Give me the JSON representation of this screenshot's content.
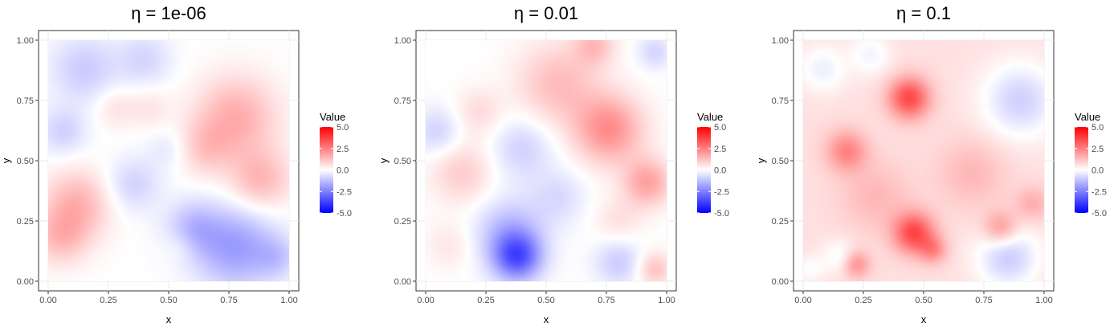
{
  "chart_data": [
    {
      "type": "heatmap",
      "title": "η = 1e-06",
      "xlabel": "x",
      "ylabel": "y",
      "xlim": [
        0,
        1
      ],
      "ylim": [
        0,
        1
      ],
      "xticks": [
        "0.00",
        "0.25",
        "0.50",
        "0.75",
        "1.00"
      ],
      "yticks": [
        "0.00",
        "0.25",
        "0.50",
        "0.75",
        "1.00"
      ],
      "grid": true,
      "legend": {
        "title": "Value",
        "position": "right",
        "range": [
          -5,
          5
        ],
        "ticks": [
          "5.0",
          "2.5",
          "0.0",
          "-2.5",
          "-5.0"
        ]
      },
      "field": {
        "base": 0,
        "blobs": [
          {
            "x": 0.12,
            "y": 0.32,
            "value": 1.5,
            "spread": 0.1
          },
          {
            "x": 0.05,
            "y": 0.18,
            "value": 1.2,
            "spread": 0.08
          },
          {
            "x": 0.78,
            "y": 0.68,
            "value": 1.6,
            "spread": 0.12
          },
          {
            "x": 0.88,
            "y": 0.42,
            "value": 1.4,
            "spread": 0.09
          },
          {
            "x": 0.65,
            "y": 0.55,
            "value": 0.9,
            "spread": 0.08
          },
          {
            "x": 0.28,
            "y": 0.72,
            "value": 0.6,
            "spread": 0.06
          },
          {
            "x": 0.55,
            "y": 0.15,
            "value": 0.4,
            "spread": 0.05
          },
          {
            "x": 0.42,
            "y": 0.72,
            "value": 0.5,
            "spread": 0.06
          },
          {
            "x": 0.15,
            "y": 0.88,
            "value": -1.0,
            "spread": 0.1
          },
          {
            "x": 0.4,
            "y": 0.92,
            "value": -0.8,
            "spread": 0.08
          },
          {
            "x": 0.06,
            "y": 0.62,
            "value": -0.9,
            "spread": 0.07
          },
          {
            "x": 0.78,
            "y": 0.14,
            "value": -1.9,
            "spread": 0.12
          },
          {
            "x": 0.6,
            "y": 0.22,
            "value": -1.2,
            "spread": 0.08
          },
          {
            "x": 0.35,
            "y": 0.4,
            "value": -0.9,
            "spread": 0.08
          },
          {
            "x": 0.5,
            "y": 0.55,
            "value": -0.5,
            "spread": 0.06
          },
          {
            "x": 0.95,
            "y": 0.1,
            "value": -0.8,
            "spread": 0.06
          }
        ]
      }
    },
    {
      "type": "heatmap",
      "title": "η = 0.01",
      "xlabel": "x",
      "ylabel": "y",
      "xlim": [
        0,
        1
      ],
      "ylim": [
        0,
        1
      ],
      "xticks": [
        "0.00",
        "0.25",
        "0.50",
        "0.75",
        "1.00"
      ],
      "yticks": [
        "0.00",
        "0.25",
        "0.50",
        "0.75",
        "1.00"
      ],
      "grid": true,
      "legend": {
        "title": "Value",
        "position": "right",
        "range": [
          -5,
          5
        ],
        "ticks": [
          "5.0",
          "2.5",
          "0.0",
          "-2.5",
          "-5.0"
        ]
      },
      "field": {
        "base": 0,
        "blobs": [
          {
            "x": 0.76,
            "y": 0.63,
            "value": 2.2,
            "spread": 0.1
          },
          {
            "x": 0.55,
            "y": 0.82,
            "value": 1.3,
            "spread": 0.12
          },
          {
            "x": 0.7,
            "y": 0.98,
            "value": 1.2,
            "spread": 0.06
          },
          {
            "x": 0.92,
            "y": 0.41,
            "value": 1.8,
            "spread": 0.07
          },
          {
            "x": 0.15,
            "y": 0.45,
            "value": 1.0,
            "spread": 0.09
          },
          {
            "x": 0.22,
            "y": 0.7,
            "value": 0.7,
            "spread": 0.07
          },
          {
            "x": 0.1,
            "y": 0.15,
            "value": 0.5,
            "spread": 0.07
          },
          {
            "x": 0.95,
            "y": 0.05,
            "value": 1.2,
            "spread": 0.05
          },
          {
            "x": 0.8,
            "y": 0.25,
            "value": 0.6,
            "spread": 0.07
          },
          {
            "x": 0.38,
            "y": 0.1,
            "value": -3.0,
            "spread": 0.07
          },
          {
            "x": 0.35,
            "y": 0.2,
            "value": -1.4,
            "spread": 0.1
          },
          {
            "x": 0.4,
            "y": 0.55,
            "value": -0.9,
            "spread": 0.09
          },
          {
            "x": 0.05,
            "y": 0.62,
            "value": -0.9,
            "spread": 0.07
          },
          {
            "x": 0.55,
            "y": 0.35,
            "value": -0.7,
            "spread": 0.08
          },
          {
            "x": 0.8,
            "y": 0.08,
            "value": -1.0,
            "spread": 0.07
          },
          {
            "x": 0.95,
            "y": 0.95,
            "value": -0.8,
            "spread": 0.05
          }
        ]
      }
    },
    {
      "type": "heatmap",
      "title": "η = 0.1",
      "xlabel": "x",
      "ylabel": "y",
      "xlim": [
        0,
        1
      ],
      "ylim": [
        0,
        1
      ],
      "xticks": [
        "0.00",
        "0.25",
        "0.50",
        "0.75",
        "1.00"
      ],
      "yticks": [
        "0.00",
        "0.25",
        "0.50",
        "0.75",
        "1.00"
      ],
      "grid": true,
      "legend": {
        "title": "Value",
        "position": "right",
        "range": [
          -5,
          5
        ],
        "ticks": [
          "5.0",
          "2.5",
          "0.0",
          "-2.5",
          "-5.0"
        ]
      },
      "field": {
        "base": 0.6,
        "blobs": [
          {
            "x": 0.44,
            "y": 0.76,
            "value": 3.0,
            "spread": 0.06
          },
          {
            "x": 0.46,
            "y": 0.2,
            "value": 3.0,
            "spread": 0.06
          },
          {
            "x": 0.18,
            "y": 0.54,
            "value": 1.8,
            "spread": 0.06
          },
          {
            "x": 0.82,
            "y": 0.22,
            "value": 1.6,
            "spread": 0.05
          },
          {
            "x": 0.22,
            "y": 0.07,
            "value": 1.6,
            "spread": 0.04
          },
          {
            "x": 0.54,
            "y": 0.13,
            "value": 1.5,
            "spread": 0.04
          },
          {
            "x": 0.95,
            "y": 0.32,
            "value": 1.0,
            "spread": 0.05
          },
          {
            "x": 0.3,
            "y": 0.35,
            "value": 0.8,
            "spread": 0.1
          },
          {
            "x": 0.7,
            "y": 0.45,
            "value": 0.8,
            "spread": 0.1
          },
          {
            "x": 0.9,
            "y": 0.75,
            "value": -1.5,
            "spread": 0.11
          },
          {
            "x": 0.85,
            "y": 0.1,
            "value": -1.6,
            "spread": 0.09
          },
          {
            "x": 0.08,
            "y": 0.88,
            "value": -0.9,
            "spread": 0.07
          },
          {
            "x": 0.28,
            "y": 0.94,
            "value": -0.8,
            "spread": 0.06
          },
          {
            "x": 0.15,
            "y": 0.1,
            "value": -0.8,
            "spread": 0.05
          },
          {
            "x": 0.03,
            "y": 0.05,
            "value": -0.6,
            "spread": 0.04
          }
        ]
      }
    }
  ]
}
